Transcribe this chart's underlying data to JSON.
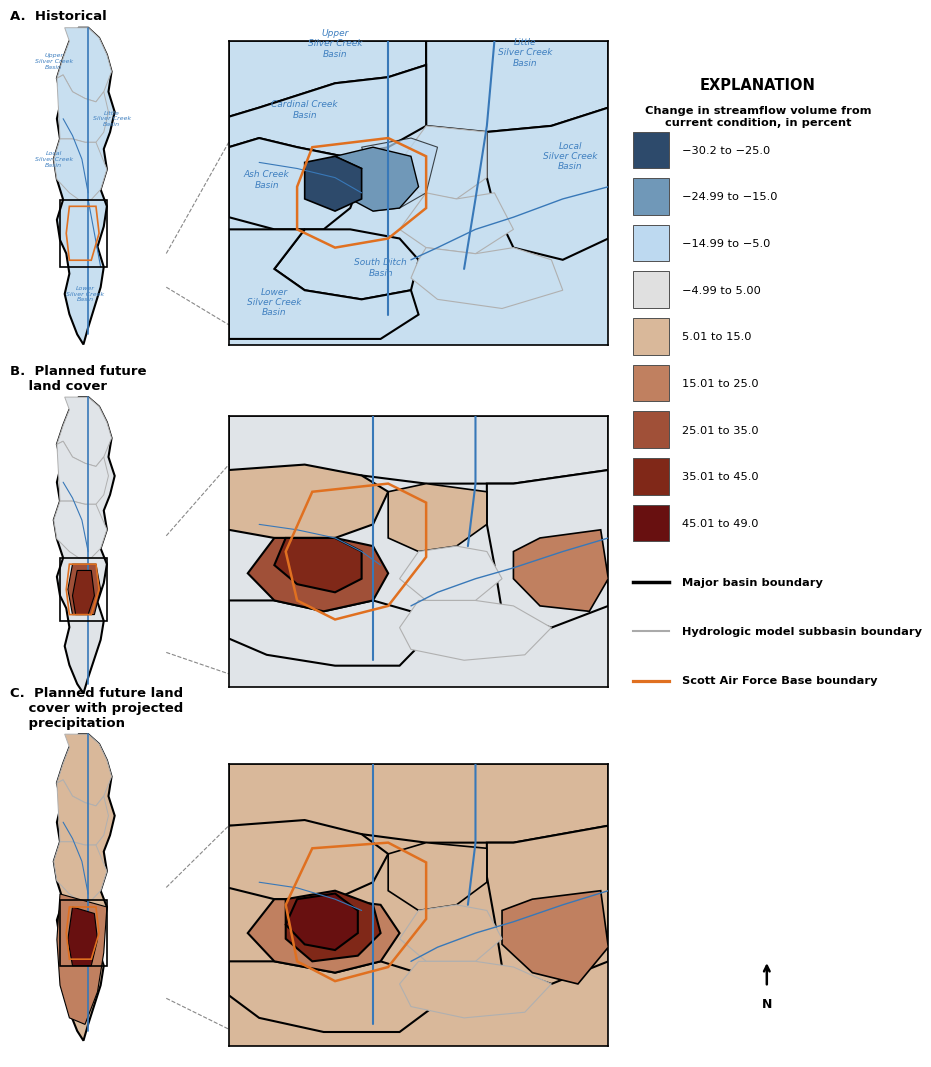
{
  "title_a": "A.  Historical",
  "title_b": "B.  Planned future\n    land cover",
  "title_c": "C.  Planned future land\n    cover with projected\n    precipitation",
  "explanation_title": "EXPLANATION",
  "legend_subtitle": "Change in streamflow volume from\ncurrent condition, in percent",
  "legend_items": [
    {
      "color": "#2d4a6b",
      "label": "−30.2 to −25.0"
    },
    {
      "color": "#7098b8",
      "label": "−24.99 to −15.0"
    },
    {
      "color": "#bdd9f0",
      "label": "−14.99 to −5.0"
    },
    {
      "color": "#e0e0e0",
      "label": "−4.99 to 5.00"
    },
    {
      "color": "#d9b89a",
      "label": "5.01 to 15.0"
    },
    {
      "color": "#c08060",
      "label": "15.01 to 25.0"
    },
    {
      "color": "#a05038",
      "label": "25.01 to 35.0"
    },
    {
      "color": "#802818",
      "label": "35.01 to 45.0"
    },
    {
      "color": "#681010",
      "label": "45.01 to 49.0"
    }
  ],
  "legend_lines": [
    {
      "color": "#000000",
      "lw": 2.0,
      "label": "Major basin boundary"
    },
    {
      "color": "#aaaaaa",
      "lw": 1.0,
      "label": "Hydrologic model subbasin boundary"
    },
    {
      "color": "#e07020",
      "lw": 1.8,
      "label": "Scott Air Force Base boundary"
    }
  ],
  "background": "#ffffff",
  "map_bg_light_blue": "#c8dff0",
  "map_bg_neutral_gray": "#e0e4e8",
  "map_bg_beige": "#d9b89a",
  "river_color": "#3878b8",
  "river_color_text": "#4080c0",
  "basin_outline": "#000000",
  "subbasin_outline": "#b0b0b0",
  "afb_outline": "#e07020"
}
